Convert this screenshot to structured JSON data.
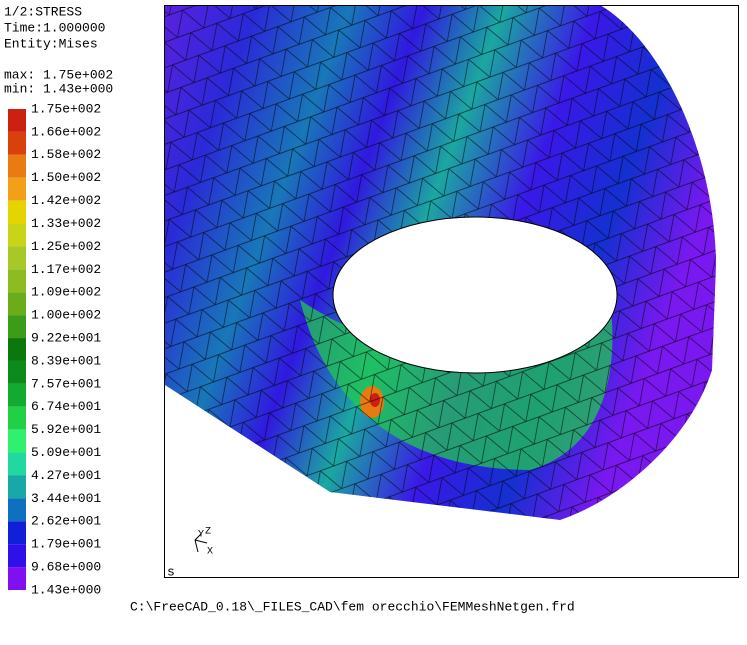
{
  "header": {
    "dataset": "1/2:STRESS",
    "time": "Time:1.000000",
    "entity": "Entity:Mises",
    "max": "max: 1.75e+002",
    "min": "min: 1.43e+000"
  },
  "legend": {
    "labels": [
      "1.75e+002",
      "1.66e+002",
      "1.58e+002",
      "1.50e+002",
      "1.42e+002",
      "1.33e+002",
      "1.25e+002",
      "1.17e+002",
      "1.09e+002",
      "1.00e+002",
      "9.22e+001",
      "8.39e+001",
      "7.57e+001",
      "6.74e+001",
      "5.92e+001",
      "5.09e+001",
      "4.27e+001",
      "3.44e+001",
      "2.62e+001",
      "1.79e+001",
      "9.68e+000",
      "1.43e+000"
    ],
    "colors": [
      "#cc2010",
      "#d8400c",
      "#ea7a12",
      "#f2a018",
      "#e6d400",
      "#c8d418",
      "#a8c828",
      "#8cbc20",
      "#6cac18",
      "#3c9c18",
      "#0a780c",
      "#0c8a1c",
      "#12aa30",
      "#22d048",
      "#30f070",
      "#20d8a0",
      "#18a8a8",
      "#1070c0",
      "#1020d8",
      "#3010e8",
      "#8010f0"
    ]
  },
  "viewport": {
    "corner": "s",
    "axes": [
      "Y",
      "Z",
      "X"
    ]
  },
  "footer": {
    "file": "C:\\FreeCAD_0.18\\_FILES_CAD\\fem orecchio\\FEMMeshNetgen.frd"
  }
}
